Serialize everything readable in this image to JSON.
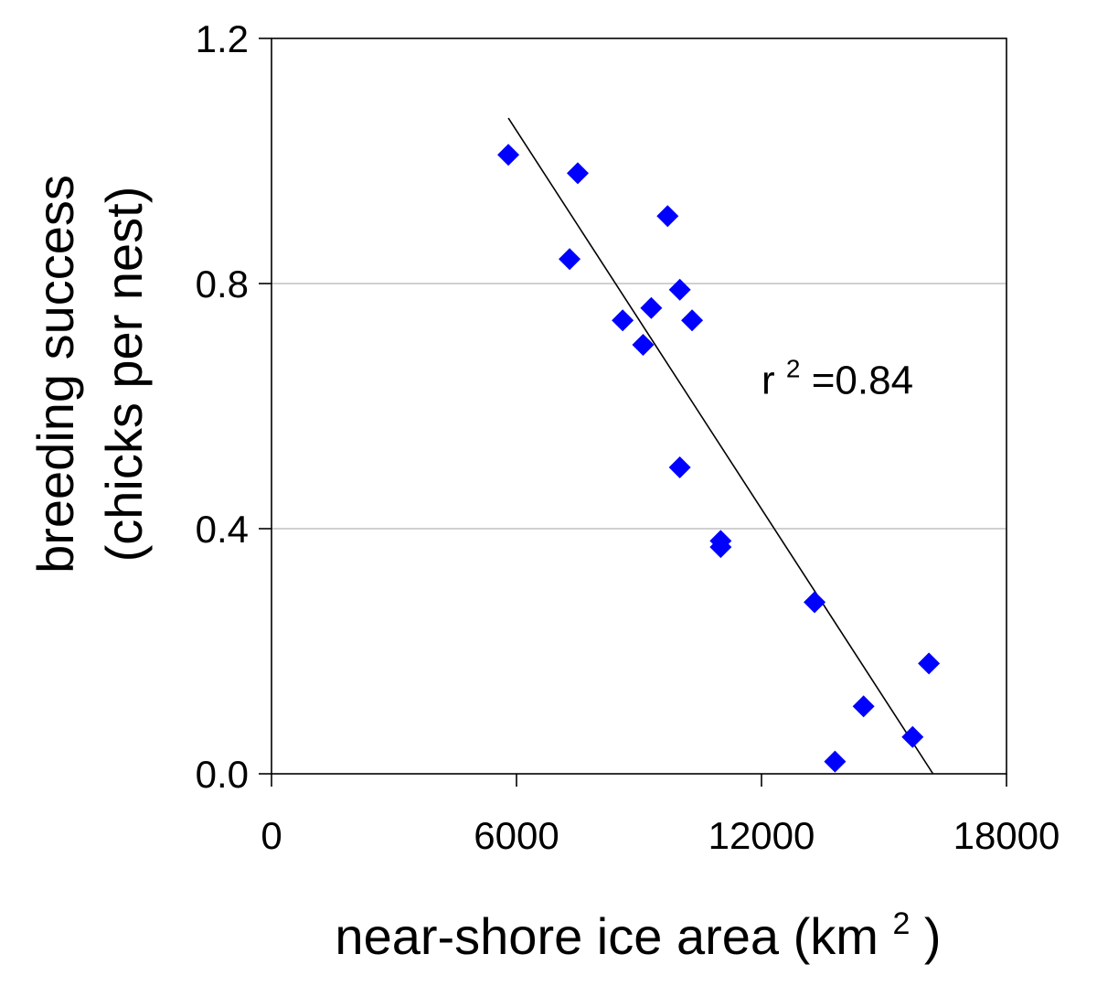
{
  "chart_data": {
    "type": "scatter",
    "title": "",
    "xlabel": {
      "text": "near-shore ice area (km",
      "superscript": "2",
      "suffix": ")"
    },
    "ylabel": {
      "line1": "breeding success",
      "line2": "(chicks per nest)"
    },
    "xlim": [
      0,
      18000
    ],
    "ylim": [
      0,
      1.2
    ],
    "x_ticks": [
      0,
      6000,
      12000,
      18000
    ],
    "x_tick_labels": [
      "0",
      "6000",
      "12000",
      "18000"
    ],
    "y_ticks": [
      0.0,
      0.4,
      0.8,
      1.2
    ],
    "y_tick_labels": [
      "0.0",
      "0.4",
      "0.8",
      "1.2"
    ],
    "grid": "horizontal",
    "gridlines_at": [
      0.4,
      0.8
    ],
    "series": [
      {
        "marker": "diamond",
        "color": "#0000ff",
        "points": [
          {
            "x": 5800,
            "y": 1.01
          },
          {
            "x": 7500,
            "y": 0.98
          },
          {
            "x": 7300,
            "y": 0.84
          },
          {
            "x": 9700,
            "y": 0.91
          },
          {
            "x": 10000,
            "y": 0.79
          },
          {
            "x": 8600,
            "y": 0.74
          },
          {
            "x": 9300,
            "y": 0.76
          },
          {
            "x": 10300,
            "y": 0.74
          },
          {
            "x": 9100,
            "y": 0.7
          },
          {
            "x": 10000,
            "y": 0.5
          },
          {
            "x": 11000,
            "y": 0.38
          },
          {
            "x": 11000,
            "y": 0.37
          },
          {
            "x": 13300,
            "y": 0.28
          },
          {
            "x": 16100,
            "y": 0.18
          },
          {
            "x": 14500,
            "y": 0.11
          },
          {
            "x": 15700,
            "y": 0.06
          },
          {
            "x": 13800,
            "y": 0.02
          }
        ]
      }
    ],
    "trendline": {
      "color": "#000000",
      "points": [
        {
          "x": 5800,
          "y": 1.07
        },
        {
          "x": 16200,
          "y": 0.0
        }
      ]
    },
    "annotation": {
      "base": "r",
      "superscript": "2",
      "suffix": "=0.84",
      "at": {
        "x": 12000,
        "y": 0.62
      }
    }
  }
}
